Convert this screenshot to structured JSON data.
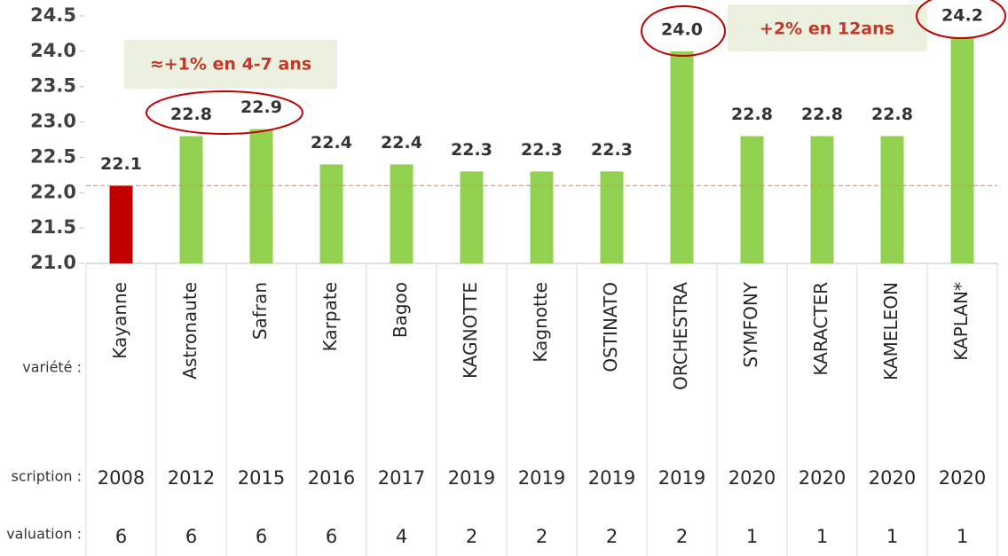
{
  "chart_data": {
    "type": "bar",
    "categories": [
      "Kayanne",
      "Astronaute",
      "Safran",
      "Karpate",
      "Bagoo",
      "KAGNOTTE",
      "Kagnotte",
      "OSTINATO",
      "ORCHESTRA",
      "SYMFONY",
      "KARACTER",
      "KAMELEON",
      "KAPLAN*"
    ],
    "values": [
      22.1,
      22.8,
      22.9,
      22.4,
      22.4,
      22.3,
      22.3,
      22.3,
      24.0,
      22.8,
      22.8,
      22.8,
      24.2
    ],
    "value_labels": [
      "22.1",
      "22.8",
      "22.9",
      "22.4",
      "22.4",
      "22.3",
      "22.3",
      "22.3",
      "24.0",
      "22.8",
      "22.8",
      "22.8",
      "24.2"
    ],
    "colors": [
      "#c00000",
      "#92d050",
      "#92d050",
      "#92d050",
      "#92d050",
      "#92d050",
      "#92d050",
      "#92d050",
      "#92d050",
      "#92d050",
      "#92d050",
      "#92d050",
      "#92d050"
    ],
    "ylim": [
      21.0,
      24.5
    ],
    "yticks": [
      {
        "value": 21,
        "label": "21.0"
      },
      21.5,
      {
        "value": 22,
        "label": "22.0"
      },
      22.5,
      {
        "value": 23,
        "label": "23.0"
      },
      23.5,
      {
        "value": 24,
        "label": "24.0"
      },
      24.5
    ],
    "reference_line": 22.1,
    "annotations": [
      "≈+1% en 4-7 ans",
      "+2% en 12ans"
    ],
    "table": {
      "row_labels": [
        "variété :",
        "scription :",
        "valuation :"
      ],
      "inscription": [
        "2008",
        "2012",
        "2015",
        "2016",
        "2017",
        "2019",
        "2019",
        "2019",
        "2019",
        "2020",
        "2020",
        "2020",
        "2020"
      ],
      "evaluation": [
        "6",
        "6",
        "6",
        "6",
        "4",
        "2",
        "2",
        "2",
        "2",
        "1",
        "1",
        "1",
        "1"
      ]
    }
  }
}
